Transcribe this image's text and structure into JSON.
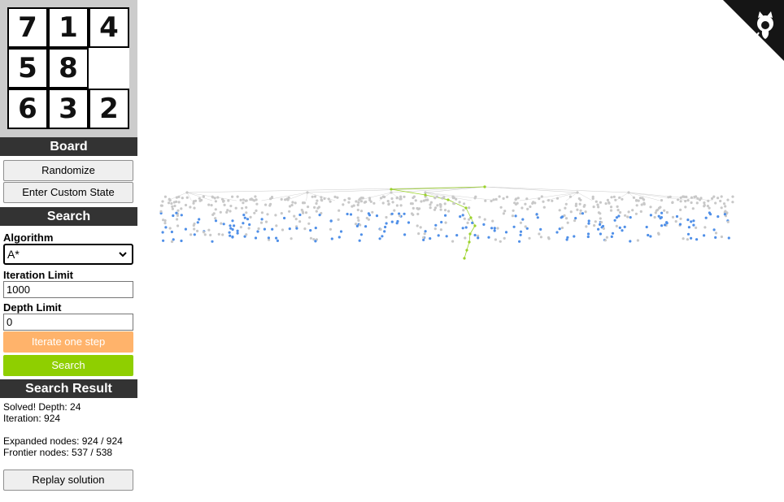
{
  "board": {
    "tiles": [
      "7",
      "1",
      "4",
      "5",
      "8",
      "",
      "6",
      "3",
      "2"
    ]
  },
  "sections": {
    "board": "Board",
    "search": "Search",
    "result": "Search Result"
  },
  "board_controls": {
    "randomize": "Randomize",
    "custom_state": "Enter Custom State"
  },
  "search": {
    "algorithm_label": "Algorithm",
    "algorithm_value": "A*",
    "iteration_label": "Iteration Limit",
    "iteration_value": "1000",
    "depth_label": "Depth Limit",
    "depth_value": "0",
    "step_button": "Iterate one step",
    "search_button": "Search"
  },
  "result": {
    "solved": "Solved! Depth: 24",
    "iteration": "Iteration: 924",
    "expanded": "Expanded nodes: 924 / 924",
    "frontier": "Frontier nodes: 537 / 538",
    "replay_button": "Replay solution"
  },
  "colors": {
    "header_bg": "#333333",
    "board_bg": "#cccccc",
    "step_button": "#ffb36b",
    "search_button": "#8fcf00",
    "node_expanded": "#c8c8c8",
    "node_frontier": "#4f8fe8",
    "node_solution": "#9bd22a",
    "corner": "#151515"
  },
  "icons": {
    "corner": "github-octocat-icon"
  }
}
